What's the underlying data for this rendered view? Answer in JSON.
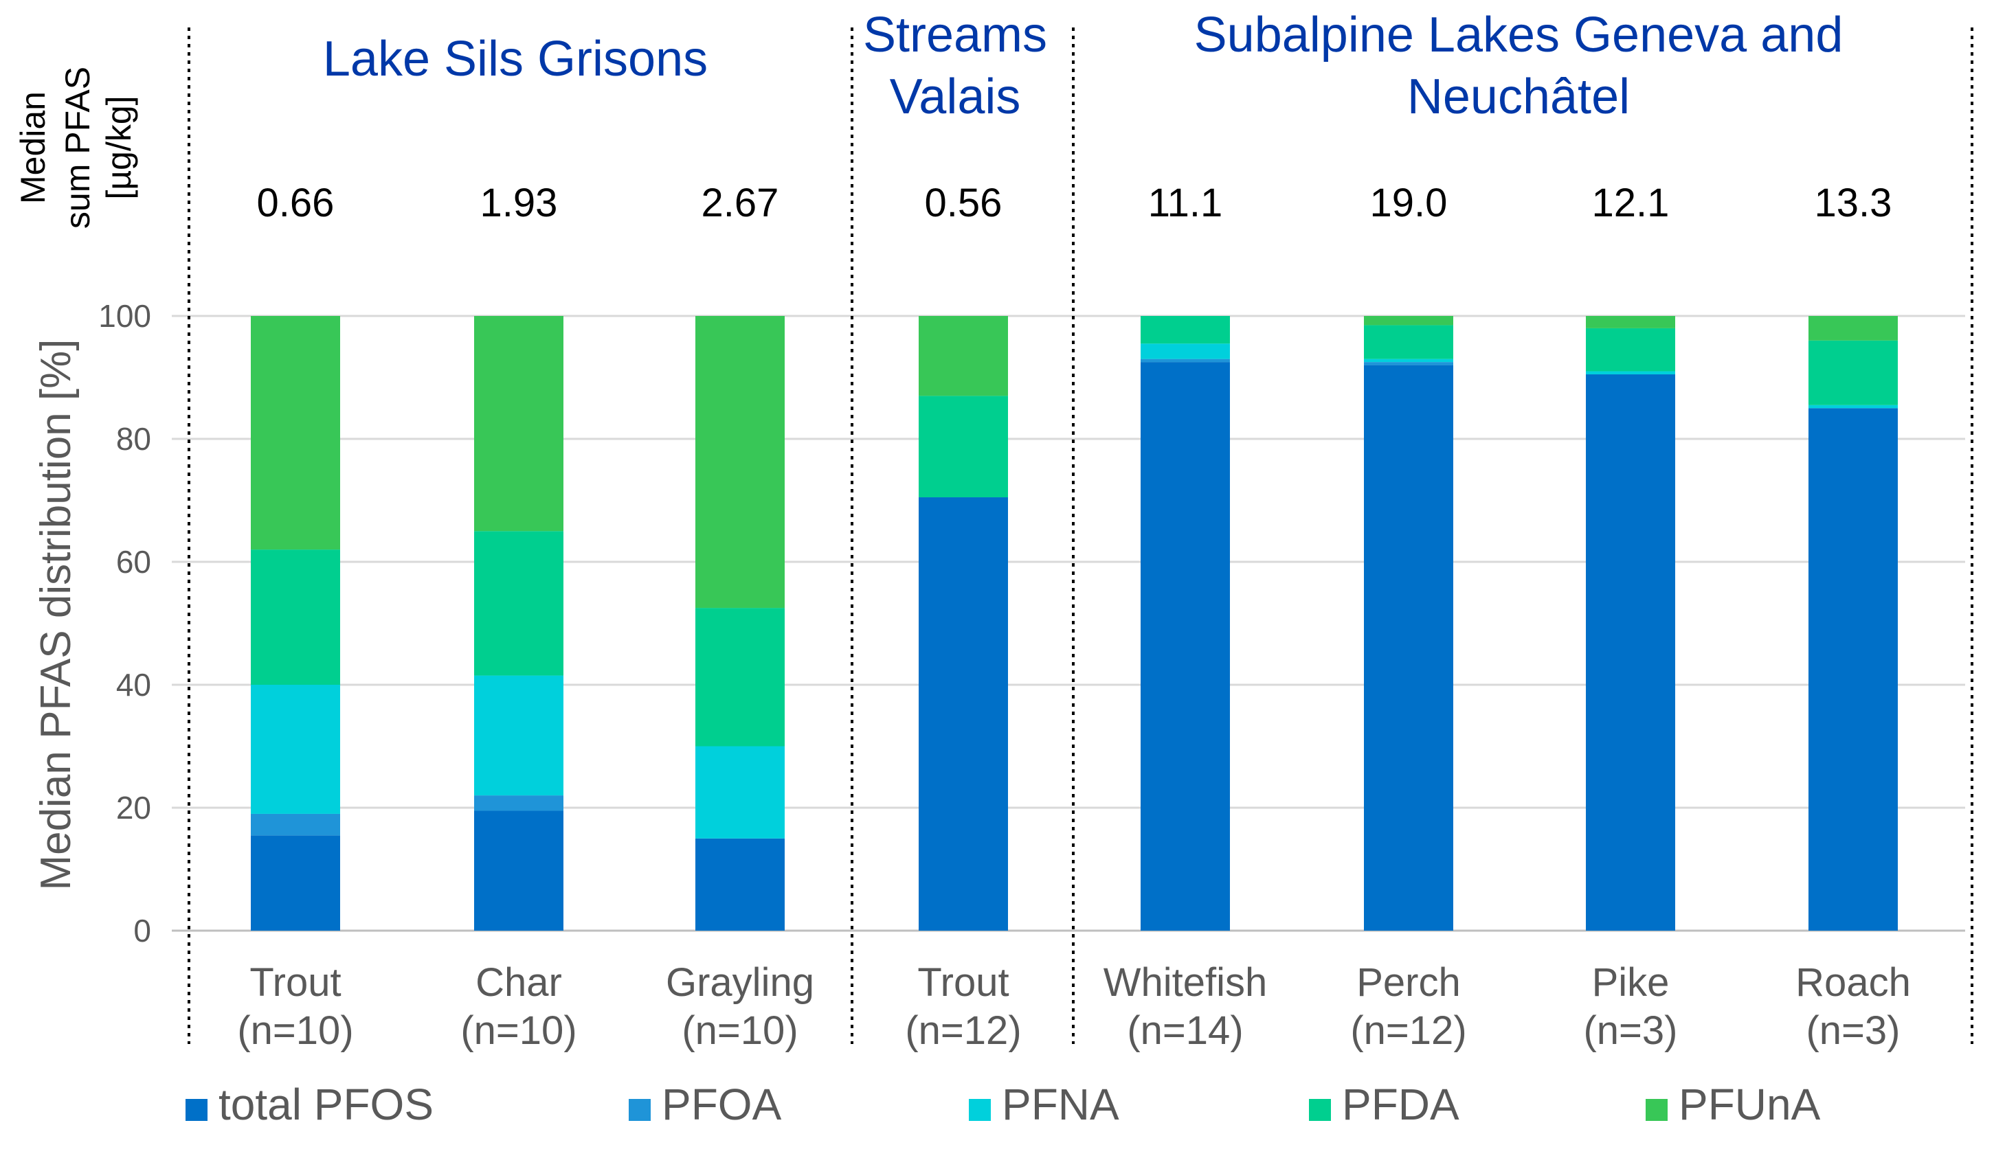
{
  "chart_data": {
    "type": "bar",
    "stacked": true,
    "ylabel": "Median PFAS distribution [%]",
    "ylim": [
      0,
      100
    ],
    "yticks": [
      "0",
      "20",
      "40",
      "60",
      "80",
      "100"
    ],
    "grid": true,
    "median_label": [
      "Median",
      "sum PFAS",
      "[µg/kg]"
    ],
    "groups": [
      {
        "title": [
          "Lake Sils Grisons"
        ],
        "start": 0,
        "count": 3
      },
      {
        "title": [
          "Streams",
          "Valais"
        ],
        "start": 3,
        "count": 1
      },
      {
        "title": [
          "Subalpine Lakes Geneva and",
          "Neuchâtel"
        ],
        "start": 4,
        "count": 4
      }
    ],
    "categories": [
      [
        "Trout",
        "(n=10)"
      ],
      [
        "Char",
        "(n=10)"
      ],
      [
        "Grayling",
        "(n=10)"
      ],
      [
        "Trout",
        "(n=12)"
      ],
      [
        "Whitefish",
        "(n=14)"
      ],
      [
        "Perch",
        "(n=12)"
      ],
      [
        "Pike",
        "(n=3)"
      ],
      [
        "Roach",
        "(n=3)"
      ]
    ],
    "median_sum_pfas": [
      "0.66",
      "1.93",
      "2.67",
      "0.56",
      "11.1",
      "19.0",
      "12.1",
      "13.3"
    ],
    "series": [
      {
        "name": "total PFOS",
        "color": "#0070c8",
        "values": [
          15.5,
          19.5,
          15,
          70.5,
          92.5,
          92,
          90.5,
          85
        ]
      },
      {
        "name": "PFOA",
        "color": "#1f94d8",
        "values": [
          3.5,
          2.5,
          0,
          0,
          0.5,
          0.5,
          0,
          0
        ]
      },
      {
        "name": "PFNA",
        "color": "#00d0dc",
        "values": [
          21,
          19.5,
          15,
          0,
          2.5,
          0.5,
          0.5,
          0.5
        ]
      },
      {
        "name": "PFDA",
        "color": "#00cf8f",
        "values": [
          22,
          23.5,
          22.5,
          16.5,
          4.5,
          5.5,
          7,
          10.5
        ]
      },
      {
        "name": "PFUnA",
        "color": "#38c757",
        "values": [
          38,
          35,
          47.5,
          13,
          0,
          1.5,
          2,
          4
        ]
      }
    ],
    "legend_position": "bottom"
  }
}
